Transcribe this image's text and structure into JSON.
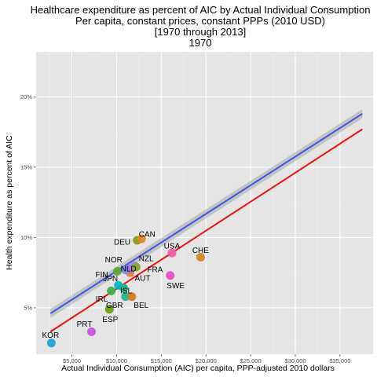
{
  "chart_data": {
    "type": "scatter",
    "title_lines": [
      "Healthcare expenditure as percent of AIC by Actual Individual Consumption",
      "Per capita, constant prices, constant PPPs (2010 USD)",
      "[1970 through 2013]",
      "1970"
    ],
    "xlabel": "Actual Individual Consumption (AIC) per capita, PPP-adjusted 2010 dollars",
    "ylabel": "Health expenditure as percent of AIC",
    "xlim": [
      1000,
      38700
    ],
    "ylim": [
      0.017,
      0.232
    ],
    "x_ticks": [
      5000,
      10000,
      15000,
      20000,
      25000,
      30000,
      35000
    ],
    "x_tick_labels": [
      "$5,000",
      "$10,000",
      "$15,000",
      "$20,000",
      "$25,000",
      "$30,000",
      "$35,000"
    ],
    "y_ticks": [
      0.05,
      0.1,
      0.15,
      0.2
    ],
    "y_tick_labels": [
      "5%",
      "10%",
      "15%",
      "20%"
    ],
    "grid": true,
    "points": [
      {
        "label": "KOR",
        "x": 2700,
        "y": 0.025,
        "color": "#1fa2d6"
      },
      {
        "label": "PRT",
        "x": 7200,
        "y": 0.033,
        "color": "#c553e0"
      },
      {
        "label": "ESP",
        "x": 9200,
        "y": 0.049,
        "color": "#6ea10a"
      },
      {
        "label": "GBR",
        "x": 11000,
        "y": 0.058,
        "color": "#19b890"
      },
      {
        "label": "BEL",
        "x": 11700,
        "y": 0.058,
        "color": "#d5781e"
      },
      {
        "label": "IRL",
        "x": 9400,
        "y": 0.062,
        "color": "#3fb04a"
      },
      {
        "label": "JPN",
        "x": 10200,
        "y": 0.066,
        "color": "#00b7c2"
      },
      {
        "label": "ISL",
        "x": 10800,
        "y": 0.064,
        "color": "#14b38a"
      },
      {
        "label": "AUT",
        "x": 11500,
        "y": 0.075,
        "color": "#e47f2a"
      },
      {
        "label": "FIN",
        "x": 10100,
        "y": 0.076,
        "color": "#5ea836"
      },
      {
        "label": "NOR",
        "x": 11000,
        "y": 0.077,
        "color": "#7b8cf2"
      },
      {
        "label": "NLD",
        "x": 11600,
        "y": 0.078,
        "color": "#9a73ec"
      },
      {
        "label": "NZL",
        "x": 12000,
        "y": 0.08,
        "color": "#a08ae0"
      },
      {
        "label": "FRA",
        "x": 12200,
        "y": 0.079,
        "color": "#8ea82c"
      },
      {
        "label": "DEU",
        "x": 12300,
        "y": 0.098,
        "color": "#8a9a1a"
      },
      {
        "label": "CAN",
        "x": 12800,
        "y": 0.099,
        "color": "#e08a2a"
      },
      {
        "label": "USA",
        "x": 16200,
        "y": 0.089,
        "color": "#ec5fa7"
      },
      {
        "label": "SWE",
        "x": 16000,
        "y": 0.073,
        "color": "#e64fc6"
      },
      {
        "label": "CHE",
        "x": 19400,
        "y": 0.086,
        "color": "#d08a2a"
      }
    ],
    "fit_lines": [
      {
        "name": "",
        "color": "#3a56e8",
        "x": [
          2600,
          37500
        ],
        "y": [
          0.046,
          0.188
        ],
        "band": 0.0032
      },
      {
        "name": "",
        "color": "#ee1111",
        "x": [
          2600,
          37500
        ],
        "y": [
          0.033,
          0.177
        ]
      }
    ],
    "colors": {
      "panel_bg": "#e5e5e5",
      "grid_major": "#ffffff",
      "grid_minor": "#f0f0f0"
    }
  }
}
